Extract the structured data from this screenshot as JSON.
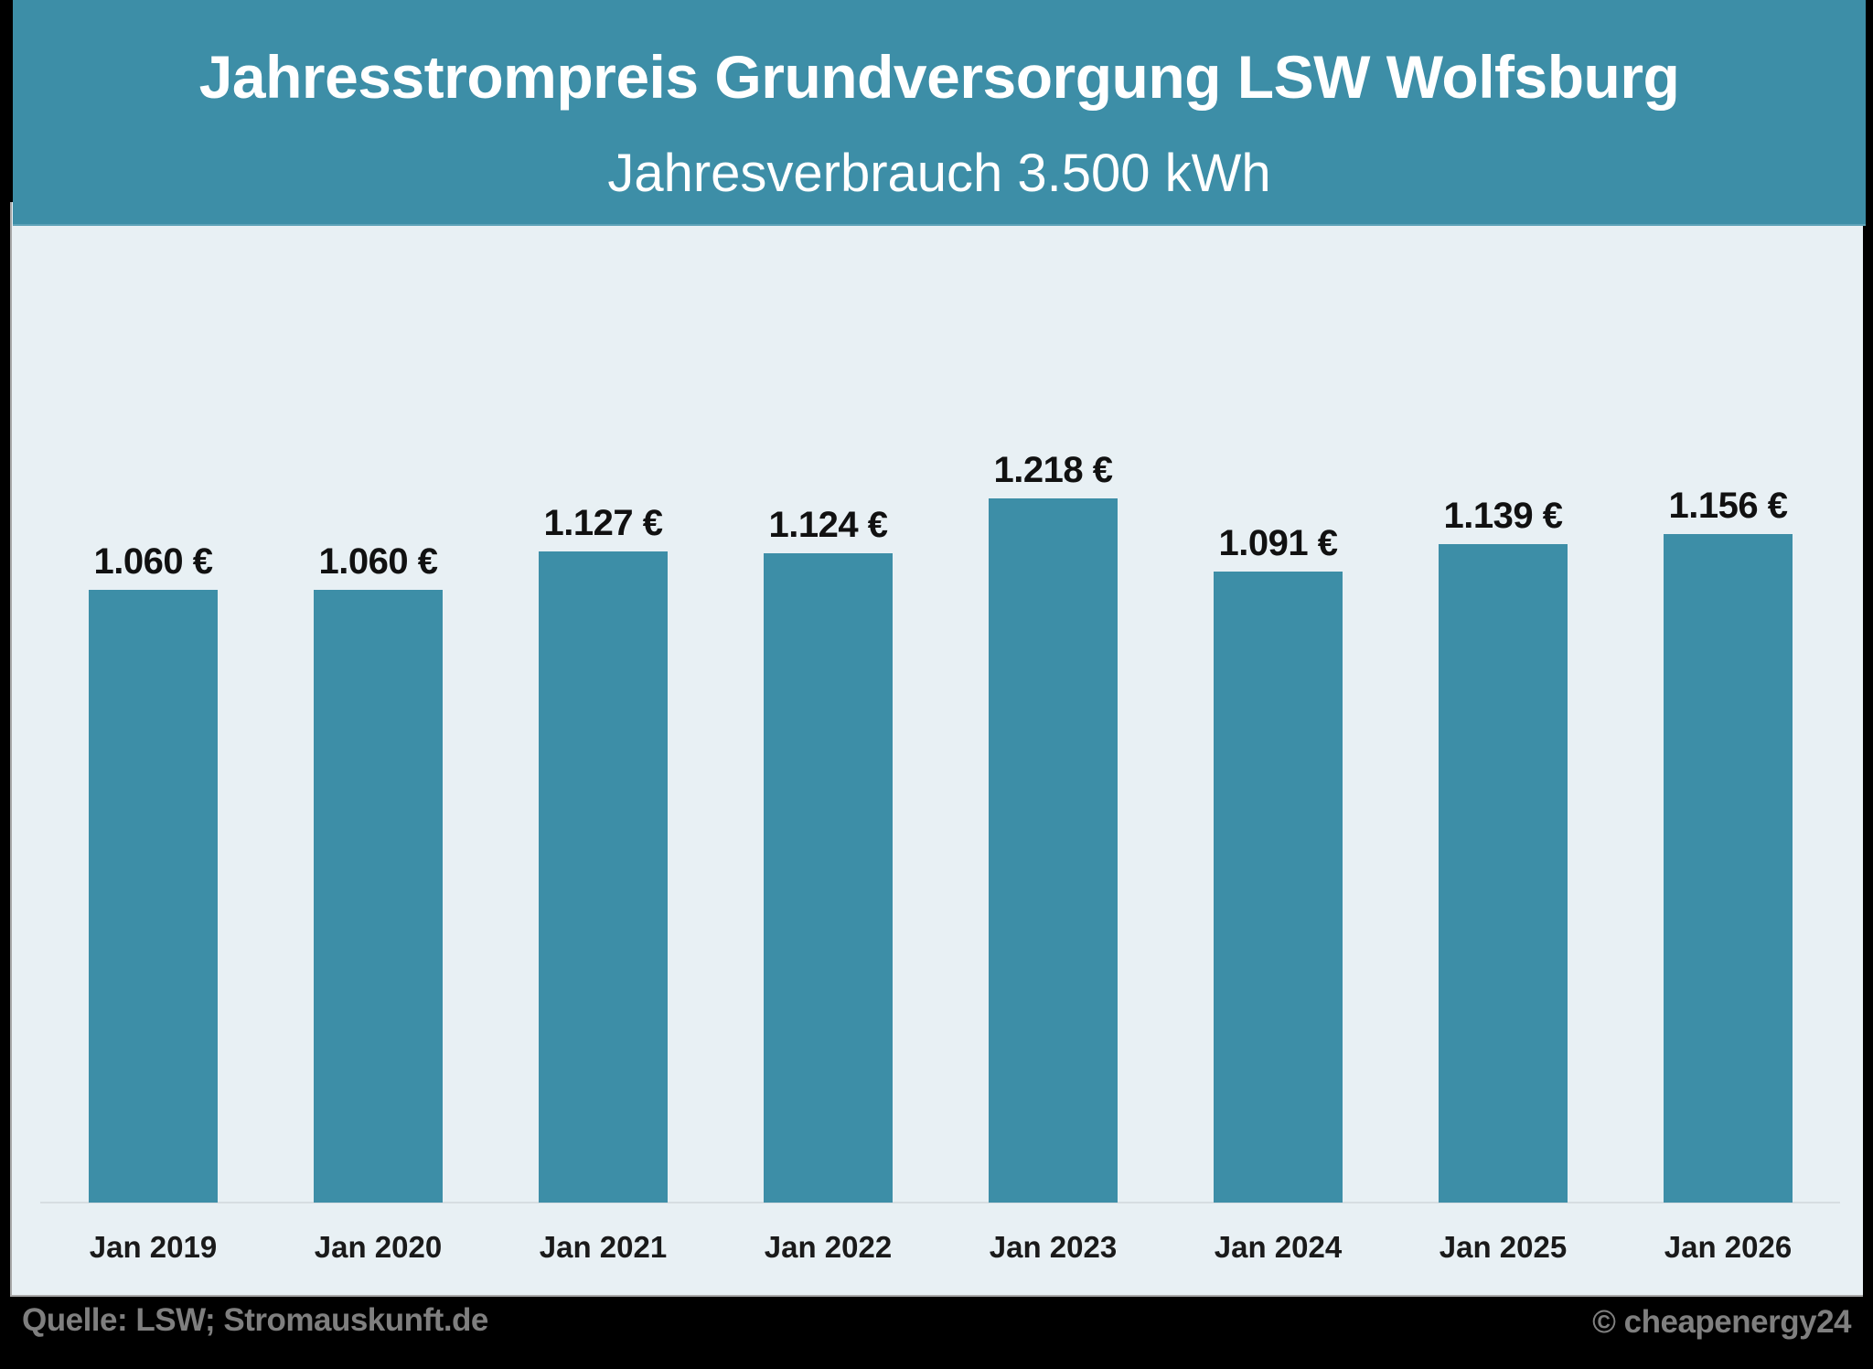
{
  "header": {
    "title": "Jahresstrompreis Grundversorgung LSW Wolfsburg",
    "subtitle": "Jahresverbrauch 3.500 kWh"
  },
  "colors": {
    "bar": "#3D8EA7",
    "header": "#3D8EA7",
    "panel": "#E8F0F4",
    "text": "#1A1A1A",
    "footer": "#7F7F7F"
  },
  "bars": [
    {
      "category": "Jan 2019",
      "value": 1060,
      "label": "1.060 €"
    },
    {
      "category": "Jan 2020",
      "value": 1060,
      "label": "1.060 €"
    },
    {
      "category": "Jan 2021",
      "value": 1127,
      "label": "1.127 €"
    },
    {
      "category": "Jan 2022",
      "value": 1124,
      "label": "1.124 €"
    },
    {
      "category": "Jan 2023",
      "value": 1218,
      "label": "1.218 €"
    },
    {
      "category": "Jan 2024",
      "value": 1091,
      "label": "1.091 €"
    },
    {
      "category": "Jan 2025",
      "value": 1139,
      "label": "1.139 €"
    },
    {
      "category": "Jan 2026",
      "value": 1156,
      "label": "1.156 €"
    }
  ],
  "footer": {
    "source": "Quelle: LSW; Stromauskunft.de",
    "copyright": "© cheapenergy24"
  },
  "chart_data": {
    "type": "bar",
    "title": "Jahresstrompreis Grundversorgung LSW Wolfsburg",
    "subtitle": "Jahresverbrauch 3.500 kWh",
    "categories": [
      "Jan 2019",
      "Jan 2020",
      "Jan 2021",
      "Jan 2022",
      "Jan 2023",
      "Jan 2024",
      "Jan 2025",
      "Jan 2026"
    ],
    "values": [
      1060,
      1060,
      1127,
      1124,
      1218,
      1091,
      1139,
      1156
    ],
    "data_labels": [
      "1.060 €",
      "1.060 €",
      "1.127 €",
      "1.124 €",
      "1.218 €",
      "1.091 €",
      "1.139 €",
      "1.156 €"
    ],
    "xlabel": "",
    "ylabel": "",
    "unit": "€",
    "ylim": [
      0,
      1700
    ],
    "grid": false,
    "y_axis_visible": false,
    "legend": null,
    "annotations": [
      "Quelle: LSW; Stromauskunft.de",
      "© cheapenergy24"
    ]
  }
}
